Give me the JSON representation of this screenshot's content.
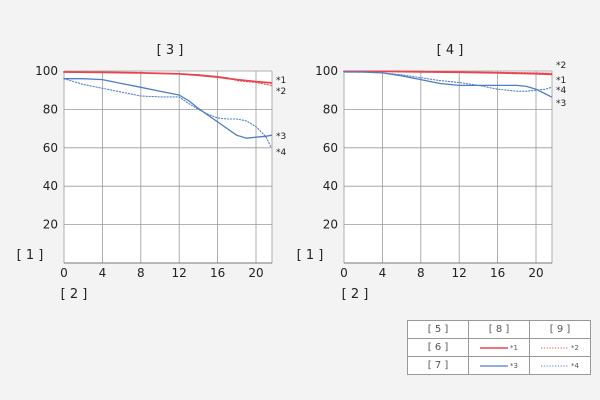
{
  "chart_data": [
    {
      "type": "line",
      "title": "[ 3 ]",
      "ylabel": "[ 1 ]",
      "xlabel": "[ 2 ]",
      "xlim": [
        0,
        21.6
      ],
      "ylim": [
        0,
        100
      ],
      "xticks": [
        0,
        4,
        8,
        12,
        16,
        20
      ],
      "yticks": [
        20,
        40,
        60,
        80,
        100
      ],
      "grid": true,
      "series": [
        {
          "name": "*1",
          "style": "solid",
          "color": "#e8454f",
          "x": [
            0,
            4,
            8,
            12,
            14,
            16,
            18,
            20,
            21.6
          ],
          "y": [
            99.5,
            99.3,
            99,
            98.5,
            97.8,
            96.8,
            95.5,
            94.5,
            93.8
          ]
        },
        {
          "name": "*2",
          "style": "dotted",
          "color": "#e8454f",
          "x": [
            0,
            4,
            8,
            12,
            14,
            16,
            17,
            18,
            20,
            21.6
          ],
          "y": [
            99.5,
            99.3,
            99,
            98.6,
            98,
            97.2,
            96.5,
            95,
            94,
            92.5
          ]
        },
        {
          "name": "*3",
          "style": "solid",
          "color": "#4f7ec8",
          "x": [
            0,
            2,
            4,
            6,
            8,
            10,
            12,
            13,
            14,
            15,
            16,
            17,
            18,
            19,
            20,
            21,
            21.6
          ],
          "y": [
            96,
            96,
            95.5,
            93.5,
            91.5,
            89.5,
            87.5,
            84.5,
            80.5,
            77,
            73.5,
            70,
            66.5,
            65,
            65.5,
            66,
            66.5
          ]
        },
        {
          "name": "*4",
          "style": "dotted",
          "color": "#4f7ec8",
          "x": [
            0,
            2,
            4,
            6,
            8,
            10,
            12,
            13,
            14,
            15,
            16,
            17,
            18,
            19,
            20,
            21,
            21.6
          ],
          "y": [
            96,
            93,
            91,
            89,
            87,
            86.5,
            86.5,
            83,
            80,
            77.5,
            75.5,
            75,
            75,
            74,
            71,
            66,
            60
          ]
        }
      ]
    },
    {
      "type": "line",
      "title": "[ 4 ]",
      "ylabel": "[ 1 ]",
      "xlabel": "[ 2 ]",
      "xlim": [
        0,
        21.6
      ],
      "ylim": [
        0,
        100
      ],
      "xticks": [
        0,
        4,
        8,
        12,
        16,
        20
      ],
      "yticks": [
        20,
        40,
        60,
        80,
        100
      ],
      "grid": true,
      "series": [
        {
          "name": "*1",
          "style": "solid",
          "color": "#e8454f",
          "x": [
            0,
            4,
            8,
            12,
            16,
            20,
            21.6
          ],
          "y": [
            99.8,
            99.8,
            99.6,
            99.4,
            99,
            98.6,
            98.3
          ]
        },
        {
          "name": "*2",
          "style": "dotted",
          "color": "#e8454f",
          "x": [
            0,
            4,
            8,
            12,
            16,
            20,
            21.6
          ],
          "y": [
            100,
            99.9,
            99.8,
            99.6,
            99.3,
            99,
            98.8
          ]
        },
        {
          "name": "*3",
          "style": "solid",
          "color": "#4f7ec8",
          "x": [
            0,
            2,
            4,
            6,
            8,
            10,
            12,
            14,
            16,
            18,
            19,
            20,
            21,
            21.6
          ],
          "y": [
            99.5,
            99.5,
            99,
            97.5,
            95.5,
            93.5,
            92.5,
            92.5,
            92.5,
            92.5,
            92,
            90.5,
            88,
            86.5
          ]
        },
        {
          "name": "*4",
          "style": "dotted",
          "color": "#4f7ec8",
          "x": [
            0,
            2,
            4,
            6,
            8,
            10,
            12,
            14,
            16,
            18,
            19,
            20,
            21,
            21.6
          ],
          "y": [
            99.5,
            99.4,
            99,
            98,
            96.5,
            95,
            94,
            92.5,
            90.5,
            89.5,
            89.5,
            90,
            90.5,
            91.5
          ]
        }
      ]
    }
  ],
  "legend_table": {
    "header": [
      "[ 5 ]",
      "[ 8 ]",
      "[ 9 ]"
    ],
    "rows": [
      {
        "label": "[ 6 ]",
        "solid_mark": "*1",
        "dotted_mark": "*2",
        "color": "#e8454f"
      },
      {
        "label": "[ 7 ]",
        "solid_mark": "*3",
        "dotted_mark": "*4",
        "color": "#4f7ec8"
      }
    ]
  }
}
